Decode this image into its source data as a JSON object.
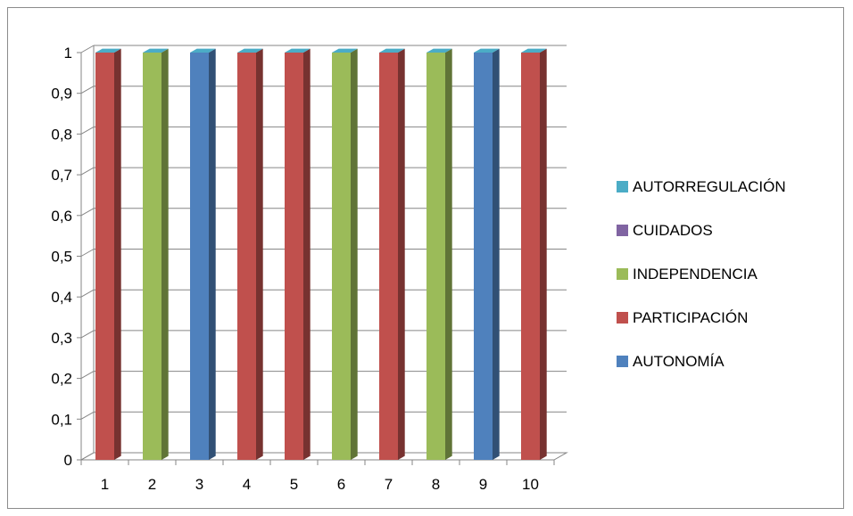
{
  "chart_data": {
    "type": "bar",
    "categories": [
      "1",
      "2",
      "3",
      "4",
      "5",
      "6",
      "7",
      "8",
      "9",
      "10"
    ],
    "series": [
      {
        "name": "AUTONOMÍA",
        "color": "#4f81bd",
        "values": [
          0,
          0,
          1,
          0,
          0,
          0,
          0,
          0,
          1,
          0
        ]
      },
      {
        "name": "PARTICIPACIÓN",
        "color": "#c0504d",
        "values": [
          1,
          0,
          0,
          1,
          1,
          0,
          1,
          0,
          0,
          1
        ]
      },
      {
        "name": "INDEPENDENCIA",
        "color": "#9bbb59",
        "values": [
          0,
          1,
          0,
          0,
          0,
          1,
          0,
          1,
          0,
          0
        ]
      },
      {
        "name": "CUIDADOS",
        "color": "#8064a2",
        "values": [
          0,
          0,
          0,
          0,
          0,
          0,
          0,
          0,
          0,
          0
        ]
      },
      {
        "name": "AUTORREGULACIÓN",
        "color": "#4bacc6",
        "values": [
          0,
          0,
          0,
          0,
          0,
          0,
          0,
          0,
          0,
          0
        ]
      }
    ],
    "stacked": true,
    "three_d": true,
    "ylim": [
      0,
      1
    ],
    "yticks": [
      "0",
      "0,1",
      "0,2",
      "0,3",
      "0,4",
      "0,5",
      "0,6",
      "0,7",
      "0,8",
      "0,9",
      "1"
    ],
    "grid": true,
    "legend_position": "right",
    "legend_order": [
      "AUTORREGULACIÓN",
      "CUIDADOS",
      "INDEPENDENCIA",
      "PARTICIPACIÓN",
      "AUTONOMÍA"
    ]
  }
}
